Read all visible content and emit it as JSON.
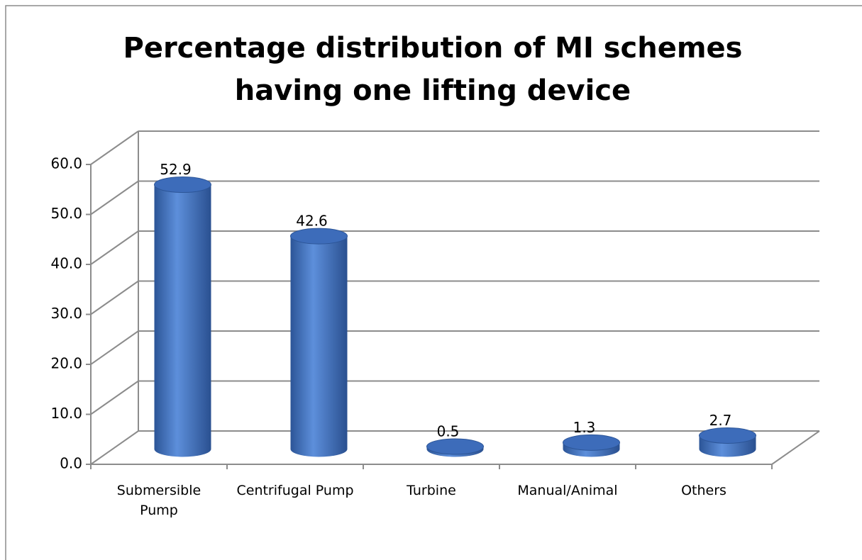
{
  "chart_data": {
    "type": "bar3d",
    "title": "Percentage distribution of MI schemes having one lifting device",
    "categories": [
      "Submersible Pump",
      "Centrifugal Pump",
      "Turbine",
      "Manual/Animal",
      "Others"
    ],
    "values": [
      52.9,
      42.6,
      0.5,
      1.3,
      2.7
    ],
    "color": "#4a7cc9",
    "ylim": [
      0,
      60
    ],
    "yticks": [
      {
        "value": 0,
        "label": "0.0"
      },
      {
        "value": 10,
        "label": "10.0"
      },
      {
        "value": 20,
        "label": "20.0"
      },
      {
        "value": 30,
        "label": "30.0"
      },
      {
        "value": 40,
        "label": "40.0"
      },
      {
        "value": 50,
        "label": "50.0"
      },
      {
        "value": 60,
        "label": "60.0"
      }
    ],
    "grid": true
  }
}
